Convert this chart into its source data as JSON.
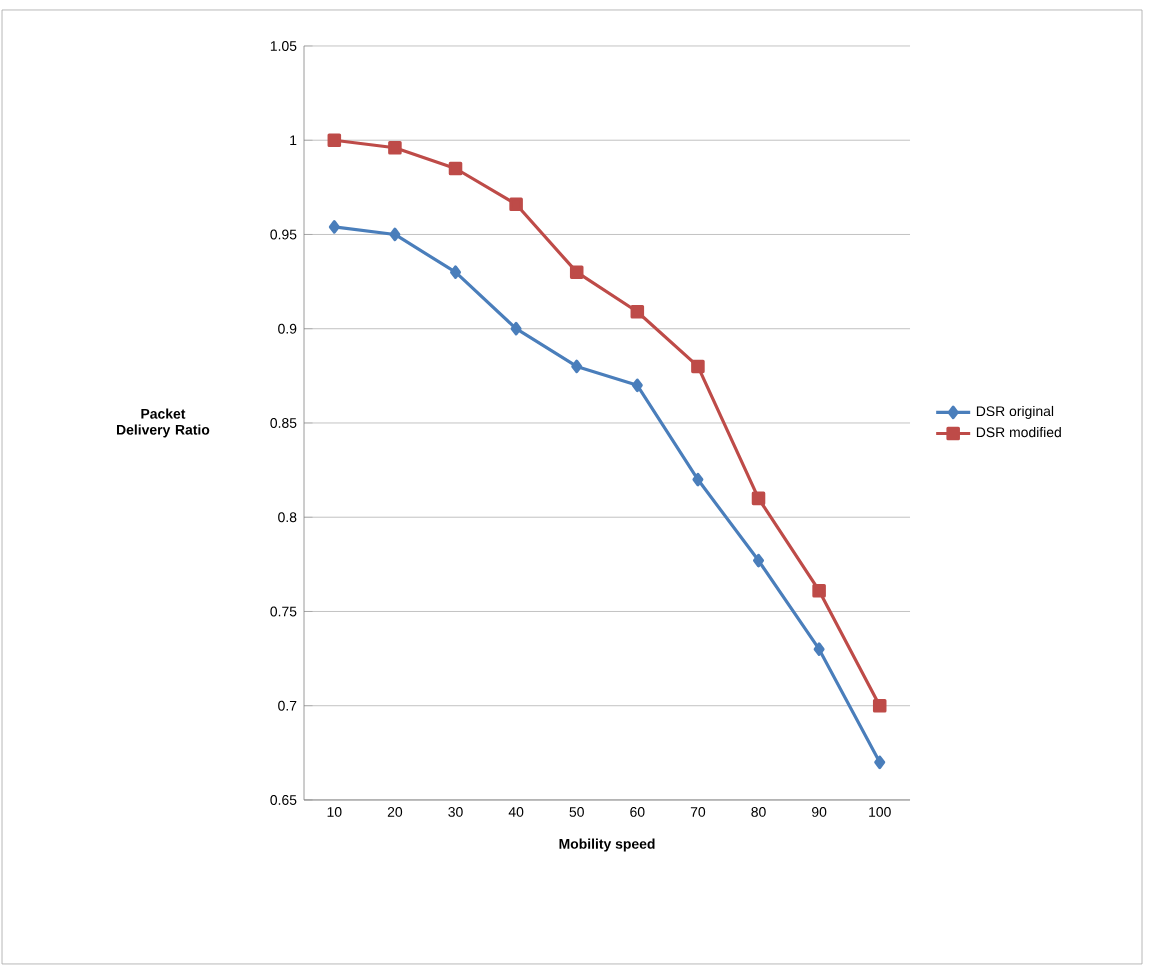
{
  "chart_data": {
    "type": "line",
    "xlabel": "Mobility speed",
    "ylabel": "Packet Delivery Ratio",
    "categories": [
      "10",
      "20",
      "30",
      "40",
      "50",
      "60",
      "70",
      "80",
      "90",
      "100"
    ],
    "series": [
      {
        "name": "DSR original",
        "color": "#4a7ebb",
        "marker": "diamond",
        "values": [
          0.954,
          0.95,
          0.93,
          0.9,
          0.88,
          0.87,
          0.82,
          0.777,
          0.73,
          0.67
        ]
      },
      {
        "name": "DSR modified",
        "color": "#be4b48",
        "marker": "square",
        "values": [
          1.0,
          0.996,
          0.985,
          0.966,
          0.93,
          0.909,
          0.88,
          0.81,
          0.761,
          0.7
        ]
      }
    ],
    "ylim": [
      0.65,
      1.05
    ],
    "yticks": [
      0.65,
      0.7,
      0.75,
      0.8,
      0.85,
      0.9,
      0.95,
      1,
      1.05
    ],
    "grid": "y",
    "legend": "right",
    "line_style": "solid"
  }
}
